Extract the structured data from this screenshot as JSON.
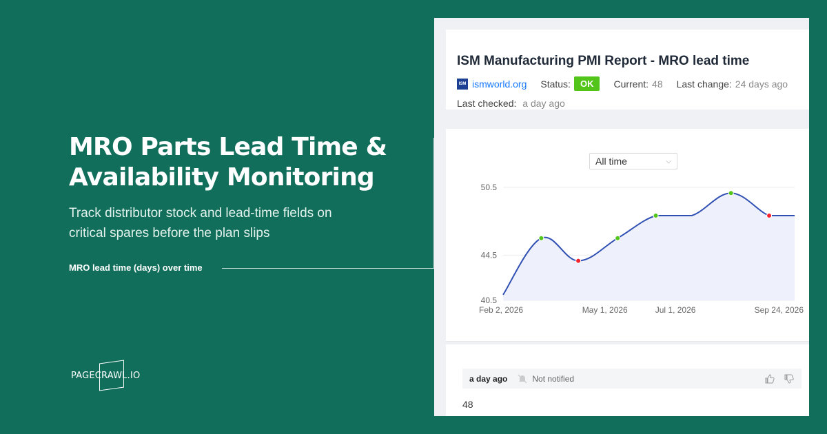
{
  "hero": {
    "title_line1": "MRO Parts Lead Time &",
    "title_line2": "Availability Monitoring",
    "subtitle_line1": "Track distributor stock and lead-time fields on",
    "subtitle_line2": "critical spares before the plan slips",
    "connector_label": "MRO lead time (days) over time"
  },
  "brand": {
    "logo_text": "PAGECRAWL.IO"
  },
  "card": {
    "title": "ISM Manufacturing PMI Report - MRO lead time",
    "site_icon_text": "ISM",
    "site": "ismworld.org",
    "status_label": "Status:",
    "status_value": "OK",
    "current_label": "Current:",
    "current_value": "48",
    "last_change_label": "Last change:",
    "last_change_value": "24 days ago",
    "last_checked_label": "Last checked:",
    "last_checked_value": "a day ago"
  },
  "chart": {
    "range_select": "All time"
  },
  "chart_data": {
    "type": "line",
    "ylim": [
      40.5,
      50.5
    ],
    "y_ticks": [
      "50.5",
      "44.5",
      "40.5"
    ],
    "x_ticks": [
      "Feb 2, 2026",
      "May 1, 2026",
      "Jul 1, 2026",
      "Sep 24, 2026"
    ],
    "points": [
      {
        "x": "2026-02-02",
        "y": 41,
        "marker": "none"
      },
      {
        "x": "2026-03-07",
        "y": 46,
        "marker": "green"
      },
      {
        "x": "2026-04-08",
        "y": 44,
        "marker": "red"
      },
      {
        "x": "2026-05-12",
        "y": 46,
        "marker": "green"
      },
      {
        "x": "2026-06-14",
        "y": 48,
        "marker": "green"
      },
      {
        "x": "2026-07-15",
        "y": 48,
        "marker": "none"
      },
      {
        "x": "2026-08-18",
        "y": 50,
        "marker": "green"
      },
      {
        "x": "2026-09-20",
        "y": 48,
        "marker": "red"
      },
      {
        "x": "2026-10-12",
        "y": 48,
        "marker": "none"
      }
    ],
    "colors": {
      "line": "#2f4fb3",
      "fill": "#eef0fb",
      "up": "#52c41a",
      "down": "#f5222d"
    }
  },
  "activity": {
    "time": "a day ago",
    "notified": "Not notified",
    "value": "48"
  }
}
